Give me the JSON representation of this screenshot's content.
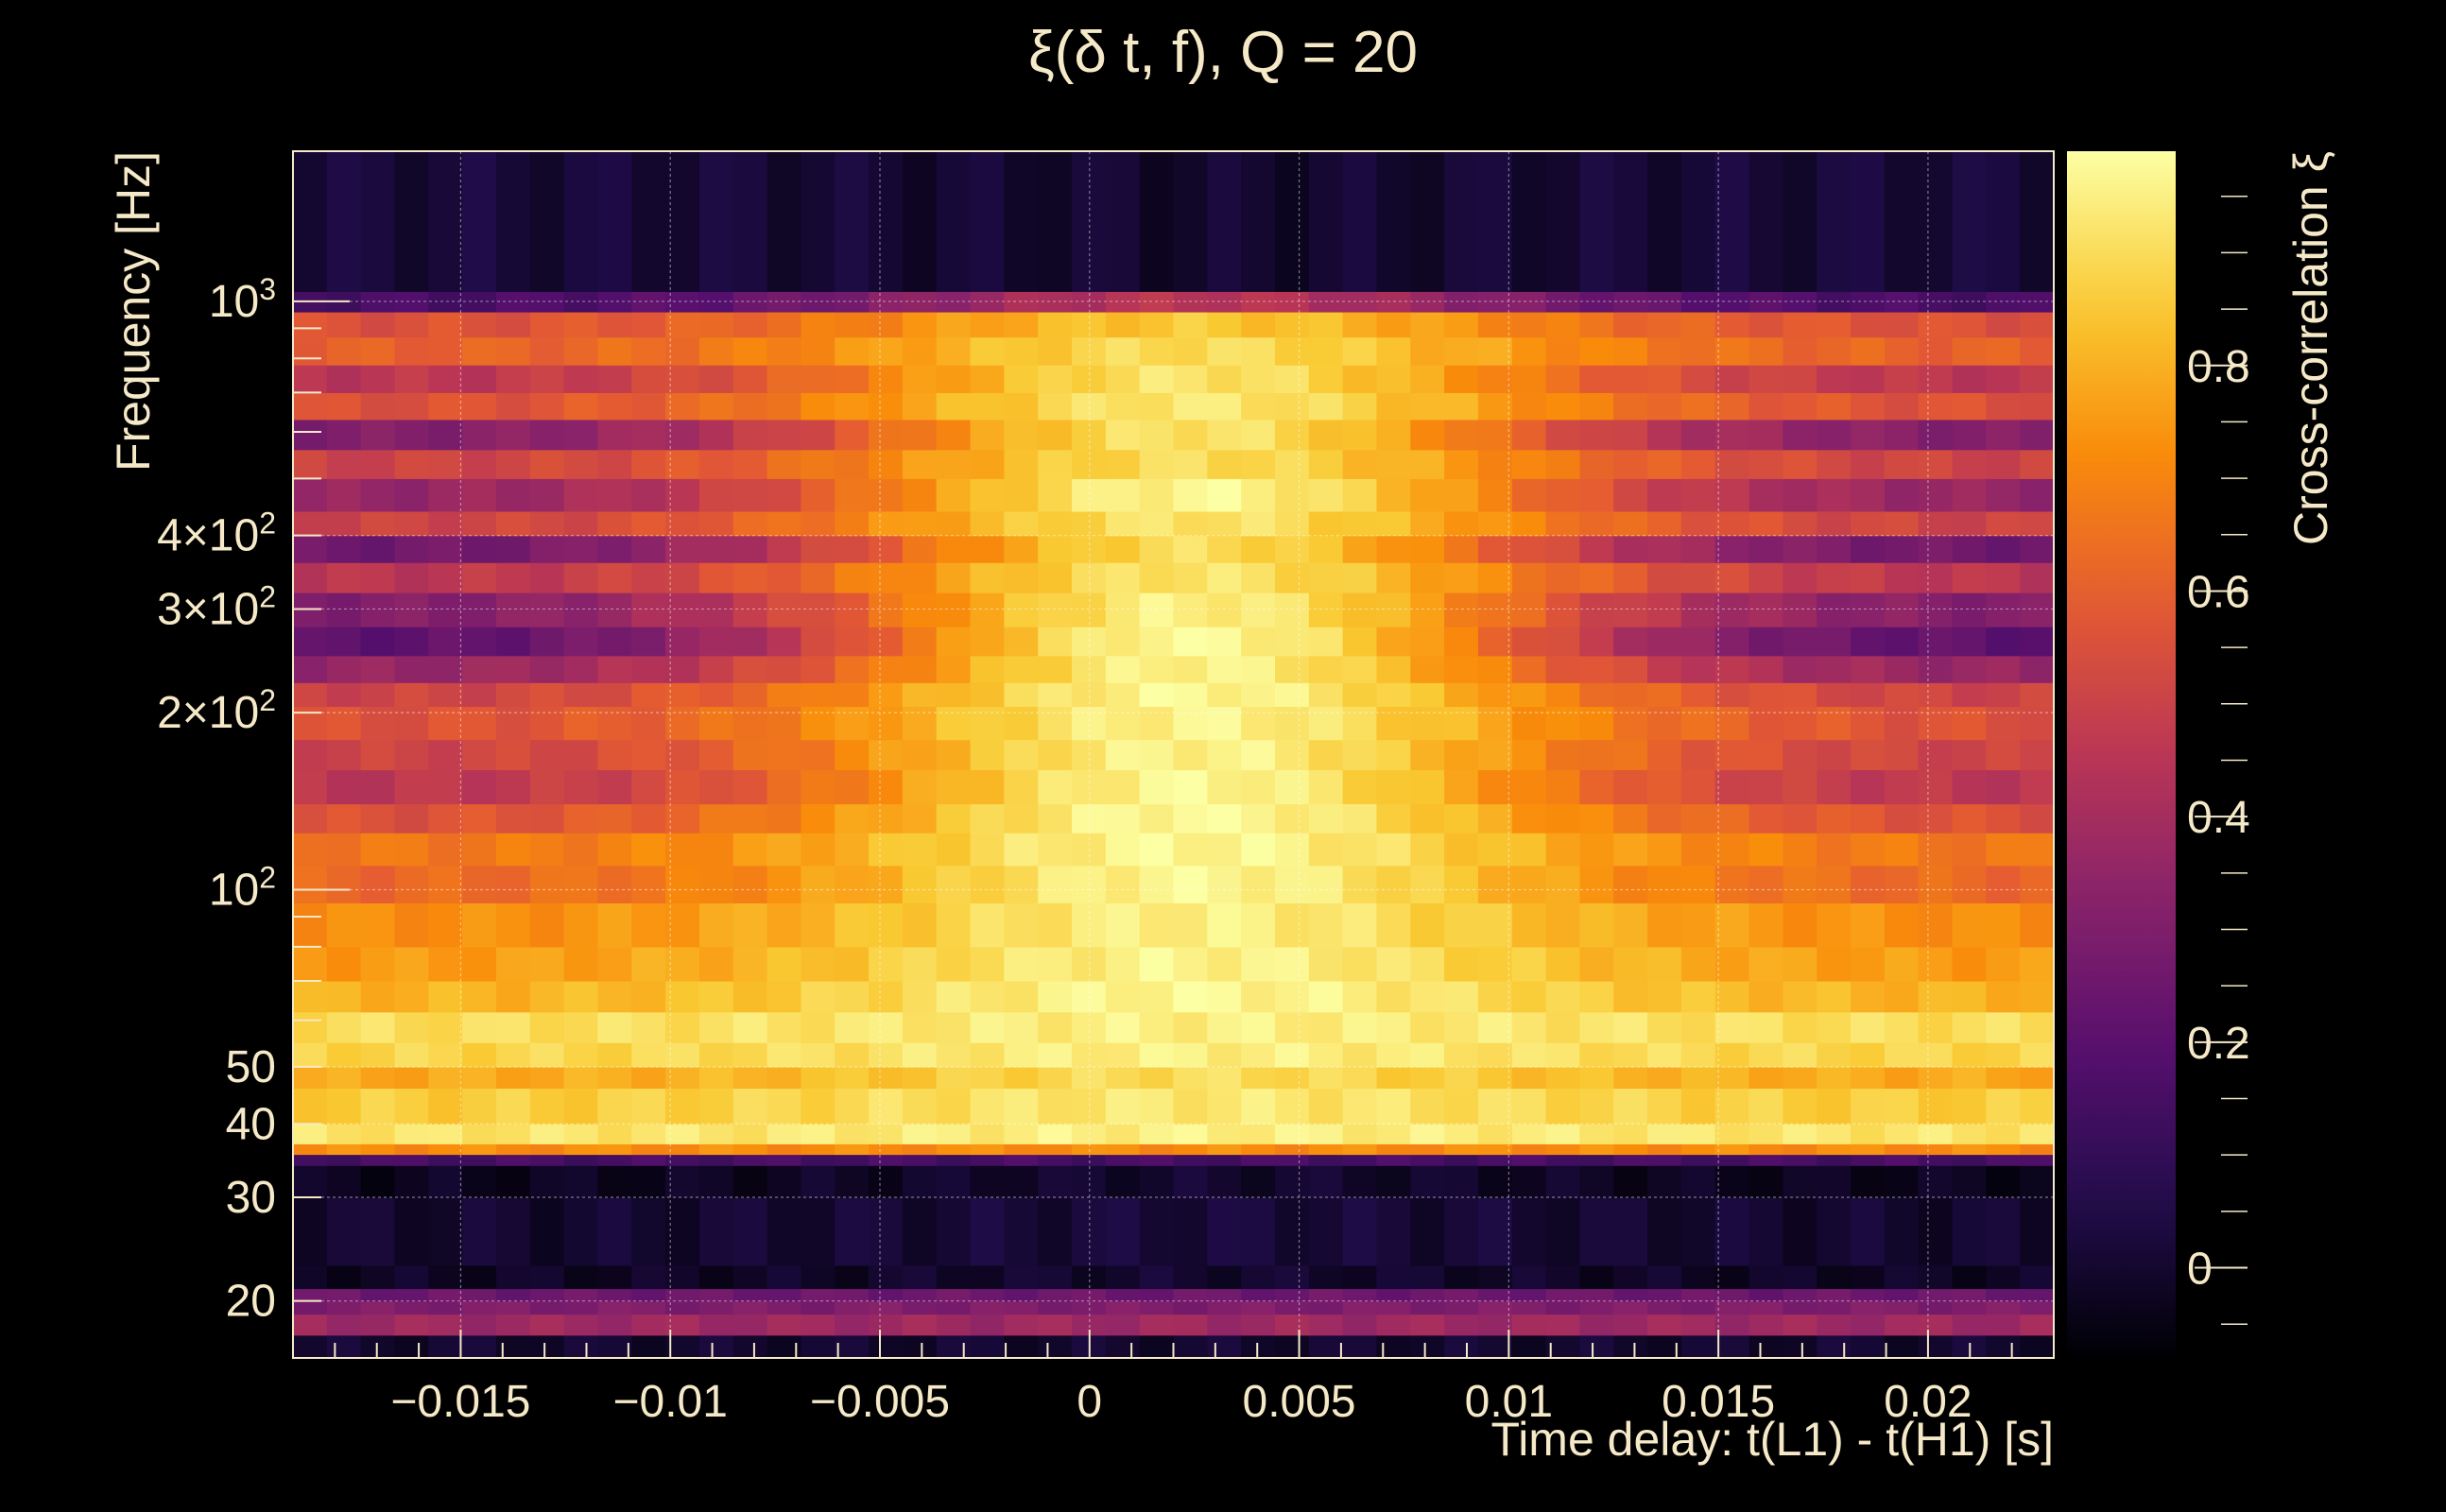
{
  "chart_data": {
    "type": "heatmap",
    "title": "ξ(δ t, f), Q = 20",
    "xlabel": "Time delay: t(L1) - t(H1) [s]",
    "ylabel": "Frequency [Hz]",
    "zlabel": "Cross-correlation ξ",
    "xlim": [
      -0.019,
      0.023
    ],
    "ylim": [
      16,
      1800
    ],
    "yscale": "log",
    "zlim": [
      -0.08,
      0.99
    ],
    "colormap": "inferno",
    "grid": true,
    "x_ticks": [
      {
        "value": -0.015,
        "label": "−0.015"
      },
      {
        "value": -0.01,
        "label": "−0.01"
      },
      {
        "value": -0.005,
        "label": "−0.005"
      },
      {
        "value": 0,
        "label": "0"
      },
      {
        "value": 0.005,
        "label": "0.005"
      },
      {
        "value": 0.01,
        "label": "0.01"
      },
      {
        "value": 0.015,
        "label": "0.015"
      },
      {
        "value": 0.02,
        "label": "0.02"
      }
    ],
    "y_ticks": [
      {
        "value": 20,
        "base": "20",
        "sup": ""
      },
      {
        "value": 30,
        "base": "30",
        "sup": ""
      },
      {
        "value": 40,
        "base": "40",
        "sup": ""
      },
      {
        "value": 50,
        "base": "50",
        "sup": ""
      },
      {
        "value": 100,
        "base": "10",
        "sup": "2"
      },
      {
        "value": 200,
        "base": "2×10",
        "sup": "2"
      },
      {
        "value": 300,
        "base": "3×10",
        "sup": "2"
      },
      {
        "value": 400,
        "base": "4×10",
        "sup": "2"
      },
      {
        "value": 1000,
        "base": "10",
        "sup": "3"
      }
    ],
    "z_ticks": [
      {
        "value": 0,
        "label": "0"
      },
      {
        "value": 0.2,
        "label": "0.2"
      },
      {
        "value": 0.4,
        "label": "0.4"
      },
      {
        "value": 0.6,
        "label": "0.6"
      },
      {
        "value": 0.8,
        "label": "0.8"
      }
    ],
    "peak": {
      "delay": 0.0025,
      "frequency": 130,
      "xi": 0.98
    },
    "band_profile": [
      {
        "f_lo": 16,
        "f_hi": 17.5,
        "center": 0.0,
        "edge": 0.0
      },
      {
        "f_lo": 17.5,
        "f_hi": 19,
        "center": 0.38,
        "edge": 0.38
      },
      {
        "f_lo": 19,
        "f_hi": 20,
        "center": 0.3,
        "edge": 0.3
      },
      {
        "f_lo": 20,
        "f_hi": 21,
        "center": 0.25,
        "edge": 0.25
      },
      {
        "f_lo": 21,
        "f_hi": 23,
        "center": 0.0,
        "edge": -0.02
      },
      {
        "f_lo": 23,
        "f_hi": 30,
        "center": 0.02,
        "edge": 0.0
      },
      {
        "f_lo": 30,
        "f_hi": 34,
        "center": 0.0,
        "edge": -0.03
      },
      {
        "f_lo": 34,
        "f_hi": 35.5,
        "center": 0.15,
        "edge": 0.15
      },
      {
        "f_lo": 35.5,
        "f_hi": 37,
        "center": 0.72,
        "edge": 0.72
      },
      {
        "f_lo": 37,
        "f_hi": 40,
        "center": 0.95,
        "edge": 0.92
      },
      {
        "f_lo": 40,
        "f_hi": 46,
        "center": 0.93,
        "edge": 0.86
      },
      {
        "f_lo": 46,
        "f_hi": 50,
        "center": 0.9,
        "edge": 0.78
      },
      {
        "f_lo": 50,
        "f_hi": 55,
        "center": 0.95,
        "edge": 0.88
      },
      {
        "f_lo": 55,
        "f_hi": 62,
        "center": 0.95,
        "edge": 0.9
      },
      {
        "f_lo": 62,
        "f_hi": 70,
        "center": 0.97,
        "edge": 0.8
      },
      {
        "f_lo": 70,
        "f_hi": 80,
        "center": 0.96,
        "edge": 0.75
      },
      {
        "f_lo": 80,
        "f_hi": 95,
        "center": 0.95,
        "edge": 0.72
      },
      {
        "f_lo": 95,
        "f_hi": 110,
        "center": 0.97,
        "edge": 0.62
      },
      {
        "f_lo": 110,
        "f_hi": 125,
        "center": 0.97,
        "edge": 0.66
      },
      {
        "f_lo": 125,
        "f_hi": 140,
        "center": 0.98,
        "edge": 0.55
      },
      {
        "f_lo": 140,
        "f_hi": 160,
        "center": 0.97,
        "edge": 0.45
      },
      {
        "f_lo": 160,
        "f_hi": 180,
        "center": 0.96,
        "edge": 0.5
      },
      {
        "f_lo": 180,
        "f_hi": 205,
        "center": 0.96,
        "edge": 0.55
      },
      {
        "f_lo": 205,
        "f_hi": 225,
        "center": 0.97,
        "edge": 0.5
      },
      {
        "f_lo": 225,
        "f_hi": 250,
        "center": 0.96,
        "edge": 0.35
      },
      {
        "f_lo": 250,
        "f_hi": 280,
        "center": 0.98,
        "edge": 0.2
      },
      {
        "f_lo": 280,
        "f_hi": 320,
        "center": 0.95,
        "edge": 0.3
      },
      {
        "f_lo": 320,
        "f_hi": 360,
        "center": 0.92,
        "edge": 0.45
      },
      {
        "f_lo": 360,
        "f_hi": 400,
        "center": 0.9,
        "edge": 0.25
      },
      {
        "f_lo": 400,
        "f_hi": 440,
        "center": 0.92,
        "edge": 0.5
      },
      {
        "f_lo": 440,
        "f_hi": 500,
        "center": 0.97,
        "edge": 0.35
      },
      {
        "f_lo": 500,
        "f_hi": 560,
        "center": 0.9,
        "edge": 0.5
      },
      {
        "f_lo": 560,
        "f_hi": 630,
        "center": 0.92,
        "edge": 0.3
      },
      {
        "f_lo": 630,
        "f_hi": 700,
        "center": 0.93,
        "edge": 0.55
      },
      {
        "f_lo": 700,
        "f_hi": 780,
        "center": 0.92,
        "edge": 0.45
      },
      {
        "f_lo": 780,
        "f_hi": 870,
        "center": 0.9,
        "edge": 0.6
      },
      {
        "f_lo": 870,
        "f_hi": 960,
        "center": 0.85,
        "edge": 0.55
      },
      {
        "f_lo": 960,
        "f_hi": 1040,
        "center": 0.45,
        "edge": 0.15
      },
      {
        "f_lo": 1040,
        "f_hi": 1800,
        "center": 0.0,
        "edge": 0.02
      }
    ]
  }
}
